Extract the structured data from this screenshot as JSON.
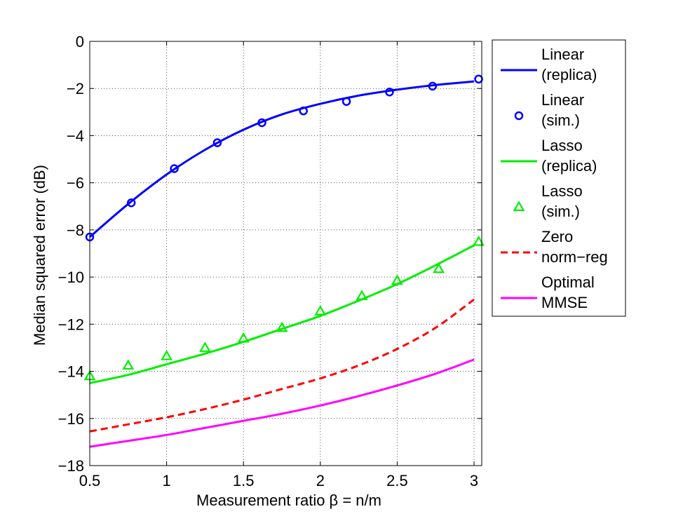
{
  "chart_data": {
    "type": "line",
    "title": "",
    "xlabel": "Measurement ratio β = n/m",
    "ylabel": "Median squared error (dB)",
    "xlim": [
      0.5,
      3.05
    ],
    "ylim": [
      -18,
      0
    ],
    "xticks": [
      0.5,
      1,
      1.5,
      2,
      2.5,
      3
    ],
    "xtick_labels": [
      "0.5",
      "1",
      "1.5",
      "2",
      "2.5",
      "3"
    ],
    "yticks": [
      -18,
      -16,
      -14,
      -12,
      -10,
      -8,
      -6,
      -4,
      -2,
      0
    ],
    "ytick_labels": [
      "−18",
      "−16",
      "−14",
      "−12",
      "−10",
      "−8",
      "−6",
      "−4",
      "−2",
      "0"
    ],
    "grid": true,
    "grid_style": "dotted",
    "legend_position": "outside-right-top",
    "series": [
      {
        "name_lines": [
          "Linear",
          "(replica)"
        ],
        "color": "#0000ff",
        "style": "solid",
        "marker": "none",
        "x": [
          0.5,
          0.75,
          1.0,
          1.25,
          1.5,
          1.75,
          2.0,
          2.25,
          2.5,
          2.75,
          3.0
        ],
        "y": [
          -8.3,
          -6.9,
          -5.65,
          -4.6,
          -3.75,
          -3.1,
          -2.65,
          -2.3,
          -2.05,
          -1.85,
          -1.7
        ]
      },
      {
        "name_lines": [
          "Linear",
          "(sim.)"
        ],
        "color": "#0000ff",
        "style": "none",
        "marker": "circle",
        "x": [
          0.5,
          0.77,
          1.05,
          1.33,
          1.62,
          1.89,
          2.17,
          2.45,
          2.73,
          3.03
        ],
        "y": [
          -8.3,
          -6.85,
          -5.4,
          -4.3,
          -3.45,
          -2.95,
          -2.55,
          -2.15,
          -1.9,
          -1.6
        ]
      },
      {
        "name_lines": [
          "Lasso",
          "(replica)"
        ],
        "color": "#00ee00",
        "style": "solid",
        "marker": "none",
        "x": [
          0.5,
          0.75,
          1.0,
          1.25,
          1.5,
          1.75,
          2.0,
          2.25,
          2.5,
          2.75,
          3.0
        ],
        "y": [
          -14.5,
          -14.15,
          -13.7,
          -13.25,
          -12.75,
          -12.2,
          -11.65,
          -11.0,
          -10.3,
          -9.5,
          -8.65
        ]
      },
      {
        "name_lines": [
          "Lasso",
          "(sim.)"
        ],
        "color": "#00ee00",
        "style": "none",
        "marker": "triangle",
        "x": [
          0.5,
          0.75,
          1.0,
          1.25,
          1.5,
          1.75,
          2.0,
          2.27,
          2.5,
          2.77,
          3.03
        ],
        "y": [
          -14.2,
          -13.75,
          -13.35,
          -13.0,
          -12.6,
          -12.15,
          -11.45,
          -10.8,
          -10.15,
          -9.65,
          -8.5
        ]
      },
      {
        "name_lines": [
          "Zero",
          "norm−reg"
        ],
        "color": "#ff0000",
        "style": "dashed",
        "marker": "none",
        "x": [
          0.5,
          0.75,
          1.0,
          1.25,
          1.5,
          1.75,
          2.0,
          2.25,
          2.5,
          2.75,
          3.0
        ],
        "y": [
          -16.55,
          -16.25,
          -15.95,
          -15.6,
          -15.2,
          -14.75,
          -14.3,
          -13.75,
          -13.05,
          -12.15,
          -10.95
        ]
      },
      {
        "name_lines": [
          "Optimal",
          "MMSE"
        ],
        "color": "#ff00ff",
        "style": "solid",
        "marker": "none",
        "x": [
          0.5,
          0.75,
          1.0,
          1.25,
          1.5,
          1.75,
          2.0,
          2.25,
          2.5,
          2.75,
          3.0
        ],
        "y": [
          -17.2,
          -16.95,
          -16.7,
          -16.4,
          -16.1,
          -15.8,
          -15.45,
          -15.05,
          -14.6,
          -14.1,
          -13.5
        ]
      }
    ]
  }
}
